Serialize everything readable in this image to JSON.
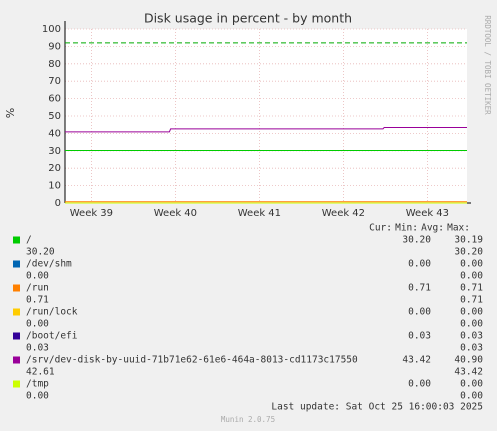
{
  "chart_data": {
    "type": "line",
    "title": "Disk usage in percent - by month",
    "y_label": "%",
    "side_label": "RRDTOOL / TOBI OETIKER",
    "xlim": [
      0,
      33.5
    ],
    "xticks": [
      {
        "value": 2.2,
        "label": "Week 39"
      },
      {
        "value": 9.2,
        "label": "Week 40"
      },
      {
        "value": 16.2,
        "label": "Week 41"
      },
      {
        "value": 23.2,
        "label": "Week 42"
      },
      {
        "value": 30.2,
        "label": "Week 43"
      }
    ],
    "ylim": [
      0,
      100
    ],
    "yticks": [
      0,
      10,
      20,
      30,
      40,
      50,
      60,
      70,
      80,
      90,
      100
    ],
    "grid": true,
    "warning": 92,
    "warning_color": "#00aa00",
    "x": [
      0,
      8.7,
      8.8,
      26.5,
      26.6,
      33.5
    ],
    "legend_header": [
      "Cur:",
      "Min:",
      "Avg:",
      "Max:"
    ],
    "series": [
      {
        "name": "/",
        "color": "#00cc00",
        "values": [
          30.2,
          30.2,
          30.2,
          30.2,
          30.2,
          30.2
        ],
        "cur": "30.20",
        "min": "30.19",
        "avg": "30.20",
        "max": "30.20"
      },
      {
        "name": "/dev/shm",
        "color": "#0066b3",
        "values": [
          0,
          0,
          0,
          0,
          0,
          0
        ],
        "cur": "0.00",
        "min": "0.00",
        "avg": "0.00",
        "max": "0.00"
      },
      {
        "name": "/run",
        "color": "#ff8000",
        "values": [
          0.71,
          0.71,
          0.71,
          0.71,
          0.71,
          0.71
        ],
        "cur": "0.71",
        "min": "0.71",
        "avg": "0.71",
        "max": "0.71"
      },
      {
        "name": "/run/lock",
        "color": "#ffcc00",
        "values": [
          0,
          0,
          0,
          0,
          0,
          0
        ],
        "cur": "0.00",
        "min": "0.00",
        "avg": "0.00",
        "max": "0.00"
      },
      {
        "name": "/boot/efi",
        "color": "#330099",
        "values": [
          0.03,
          0.03,
          0.03,
          0.03,
          0.03,
          0.03
        ],
        "cur": "0.03",
        "min": "0.03",
        "avg": "0.03",
        "max": "0.03"
      },
      {
        "name": "/srv/dev-disk-by-uuid-71b71e62-61e6-464a-8013-cd1173c17550",
        "color": "#990099",
        "values": [
          40.9,
          40.9,
          42.6,
          42.6,
          43.42,
          43.42
        ],
        "cur": "43.42",
        "min": "40.90",
        "avg": "42.61",
        "max": "43.42"
      },
      {
        "name": "/tmp",
        "color": "#ccff00",
        "values": [
          0,
          0,
          0,
          0,
          0,
          0
        ],
        "cur": "0.00",
        "min": "0.00",
        "avg": "0.00",
        "max": "0.00"
      }
    ],
    "last_update": "Last update: Sat Oct 25 16:00:03 2025",
    "footer": "Munin 2.0.75"
  }
}
